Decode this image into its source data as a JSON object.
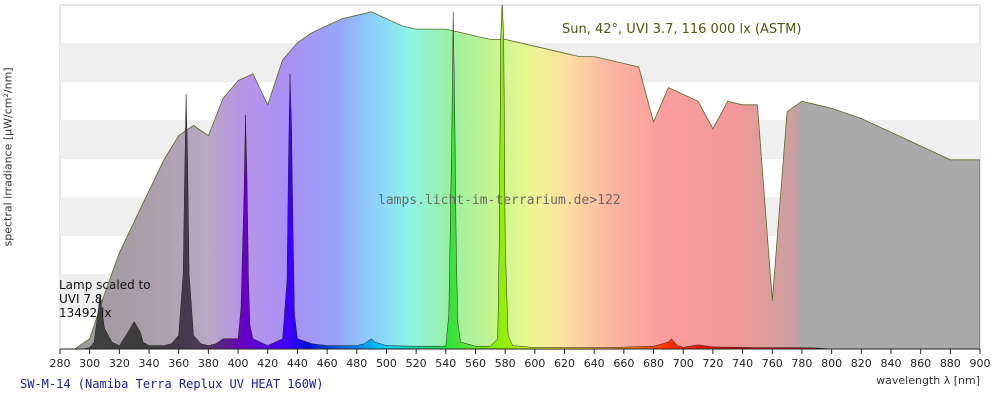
{
  "chart_data": {
    "type": "area",
    "title": "SW-M-14 (Namiba Terra Replux UV HEAT 160W)",
    "watermark": "lamps.licht-im-terrarium.de>122",
    "xlabel": "wavelength λ [nm]",
    "ylabel": "spectral irradiance [µW/cm²/nm]",
    "xlim": [
      280,
      900
    ],
    "x_ticks": [
      280,
      300,
      320,
      340,
      360,
      380,
      400,
      420,
      440,
      460,
      480,
      500,
      520,
      540,
      560,
      580,
      600,
      620,
      640,
      660,
      680,
      700,
      720,
      740,
      760,
      780,
      800,
      820,
      840,
      860,
      880,
      900
    ],
    "grid": "horizontal bands",
    "annotations": {
      "sun": "Sun, 42°, UVI 3.7, 116 000 lx (ASTM)",
      "lamp_line1": "Lamp scaled to",
      "lamp_line2": "UVI 7.8",
      "lamp_line3": "13492 lx"
    },
    "series": [
      {
        "name": "Sun, 42°, UVI 3.7, 116 000 lx (ASTM)",
        "x": [
          290,
          300,
          310,
          320,
          330,
          340,
          350,
          360,
          370,
          380,
          390,
          400,
          410,
          420,
          430,
          440,
          450,
          460,
          470,
          480,
          490,
          500,
          510,
          520,
          530,
          540,
          550,
          560,
          570,
          580,
          590,
          600,
          610,
          620,
          630,
          640,
          650,
          660,
          670,
          680,
          690,
          700,
          710,
          720,
          730,
          740,
          750,
          760,
          770,
          780,
          790,
          800,
          820,
          840,
          860,
          880,
          900
        ],
        "values": [
          0.0,
          0.03,
          0.16,
          0.28,
          0.37,
          0.46,
          0.55,
          0.62,
          0.65,
          0.62,
          0.73,
          0.78,
          0.8,
          0.71,
          0.84,
          0.89,
          0.92,
          0.94,
          0.96,
          0.97,
          0.98,
          0.96,
          0.94,
          0.93,
          0.93,
          0.93,
          0.92,
          0.91,
          0.9,
          0.9,
          0.89,
          0.88,
          0.87,
          0.86,
          0.85,
          0.85,
          0.84,
          0.83,
          0.82,
          0.66,
          0.76,
          0.74,
          0.72,
          0.64,
          0.72,
          0.71,
          0.71,
          0.14,
          0.69,
          0.72,
          0.71,
          0.7,
          0.67,
          0.63,
          0.59,
          0.55,
          0.55
        ]
      },
      {
        "name": "lamp",
        "x": [
          288,
          295,
          300,
          303,
          306,
          307,
          308,
          310,
          315,
          320,
          326,
          330,
          334,
          336,
          340,
          350,
          355,
          360,
          363,
          364,
          365,
          366,
          367,
          370,
          375,
          380,
          385,
          390,
          400,
          402,
          404,
          405,
          406,
          407,
          408,
          410,
          420,
          430,
          433,
          434,
          435,
          436,
          437,
          438,
          440,
          450,
          460,
          480,
          485,
          490,
          492,
          500,
          520,
          540,
          542,
          544,
          545,
          546,
          547,
          548,
          550,
          560,
          570,
          575,
          576,
          577,
          578,
          579,
          580,
          582,
          585,
          600,
          620,
          650,
          680,
          690,
          692,
          694,
          696,
          700,
          710,
          720,
          750,
          780,
          790,
          800
        ],
        "values": [
          0,
          0,
          0.004,
          0.02,
          0.12,
          0.16,
          0.12,
          0.06,
          0.02,
          0.01,
          0.05,
          0.08,
          0.05,
          0.02,
          0.01,
          0.01,
          0.015,
          0.04,
          0.22,
          0.49,
          0.74,
          0.55,
          0.22,
          0.04,
          0.015,
          0.01,
          0.015,
          0.03,
          0.03,
          0.12,
          0.45,
          0.68,
          0.5,
          0.2,
          0.07,
          0.03,
          0.01,
          0.03,
          0.2,
          0.55,
          0.8,
          0.65,
          0.35,
          0.1,
          0.03,
          0.015,
          0.01,
          0.01,
          0.015,
          0.03,
          0.02,
          0.01,
          0.008,
          0.008,
          0.1,
          0.6,
          0.98,
          0.7,
          0.3,
          0.08,
          0.02,
          0.008,
          0.008,
          0.03,
          0.3,
          0.9,
          1.4,
          0.9,
          0.3,
          0.04,
          0.01,
          0.004,
          0.004,
          0.004,
          0.008,
          0.02,
          0.03,
          0.02,
          0.01,
          0.005,
          0.012,
          0.006,
          0.004,
          0.004,
          0.003,
          0
        ]
      }
    ]
  }
}
